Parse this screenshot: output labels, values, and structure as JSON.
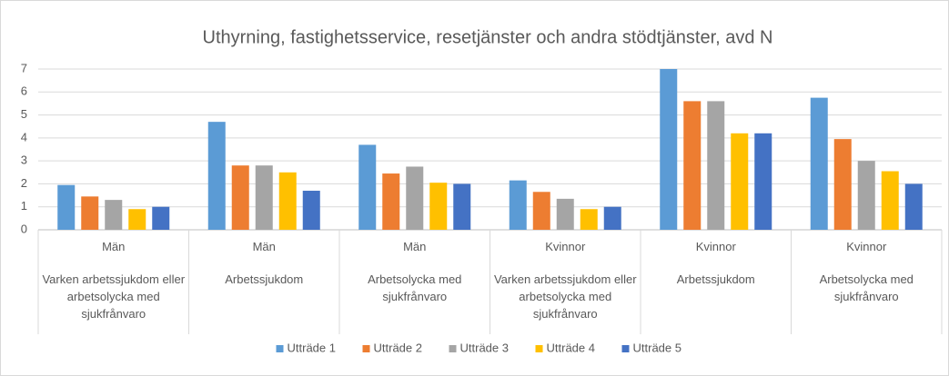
{
  "chart_data": {
    "type": "bar",
    "title": "Uthyrning, fastighetsservice, resetjänster och andra stödtjänster, avd N",
    "categories": [
      "Män",
      "Män",
      "Män",
      "Kvinnor",
      "Kvinnor",
      "Kvinnor"
    ],
    "subcategories": [
      "Varken arbetssjukdom eller arbetsolycka med sjukfrånvaro",
      "Arbetssjukdom",
      "Arbetsolycka med sjukfrånvaro",
      "Varken arbetssjukdom eller arbetsolycka med sjukfrånvaro",
      "Arbetssjukdom",
      "Arbetsolycka med sjukfrånvaro"
    ],
    "series": [
      {
        "name": "Utträde 1",
        "color": "#5b9bd5",
        "values": [
          1.95,
          4.7,
          3.7,
          2.15,
          7.0,
          5.75
        ]
      },
      {
        "name": "Utträde 2",
        "color": "#ed7d31",
        "values": [
          1.45,
          2.8,
          2.45,
          1.65,
          5.6,
          3.95
        ]
      },
      {
        "name": "Utträde 3",
        "color": "#a5a5a5",
        "values": [
          1.3,
          2.8,
          2.75,
          1.35,
          5.6,
          3.0
        ]
      },
      {
        "name": "Utträde 4",
        "color": "#ffc000",
        "values": [
          0.9,
          2.5,
          2.05,
          0.9,
          4.2,
          2.55
        ]
      },
      {
        "name": "Utträde 5",
        "color": "#4472c4",
        "values": [
          1.0,
          1.7,
          2.0,
          1.0,
          4.2,
          2.0
        ]
      }
    ],
    "ylim": [
      0,
      7
    ],
    "yticks": [
      0,
      1,
      2,
      3,
      4,
      5,
      6,
      7
    ],
    "grid": true,
    "legend": "bottom"
  }
}
